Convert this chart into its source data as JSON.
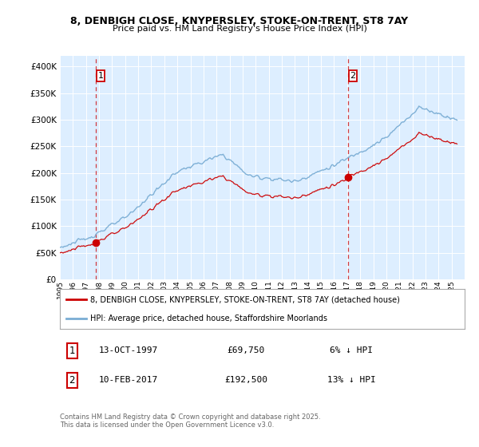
{
  "title_line1": "8, DENBIGH CLOSE, KNYPERSLEY, STOKE-ON-TRENT, ST8 7AY",
  "title_line2": "Price paid vs. HM Land Registry's House Price Index (HPI)",
  "purchase1_price": 69750,
  "purchase1_label": "1",
  "purchase2_price": 192500,
  "purchase2_label": "2",
  "hpi_color": "#7aadd4",
  "price_color": "#cc0000",
  "marker_color": "#cc0000",
  "vline_color": "#cc0000",
  "plot_bg_color": "#ddeeff",
  "fig_bg_color": "#ffffff",
  "legend_label1": "8, DENBIGH CLOSE, KNYPERSLEY, STOKE-ON-TRENT, ST8 7AY (detached house)",
  "legend_label2": "HPI: Average price, detached house, Staffordshire Moorlands",
  "annotation1_date": "13-OCT-1997",
  "annotation1_price": "£69,750",
  "annotation1_hpi": "6% ↓ HPI",
  "annotation2_date": "10-FEB-2017",
  "annotation2_price": "£192,500",
  "annotation2_hpi": "13% ↓ HPI",
  "footer": "Contains HM Land Registry data © Crown copyright and database right 2025.\nThis data is licensed under the Open Government Licence v3.0.",
  "ylim": [
    0,
    420000
  ],
  "yticks": [
    0,
    50000,
    100000,
    150000,
    200000,
    250000,
    300000,
    350000,
    400000
  ],
  "start_year": 1995,
  "end_year": 2025
}
